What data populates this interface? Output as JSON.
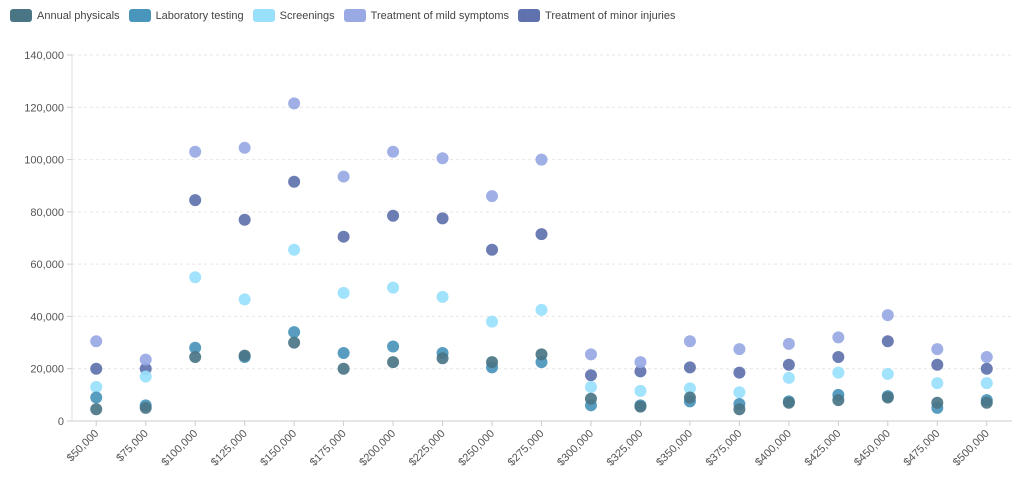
{
  "chart_data": {
    "type": "scatter",
    "title": "",
    "xlabel": "",
    "ylabel": "",
    "ylim": [
      0,
      140000
    ],
    "yticks": [
      0,
      20000,
      40000,
      60000,
      80000,
      100000,
      120000,
      140000
    ],
    "ytick_labels": [
      "0",
      "20,000",
      "40,000",
      "60,000",
      "80,000",
      "100,000",
      "120,000",
      "140,000"
    ],
    "grid": true,
    "legend_position": "top-left",
    "categories": [
      "$50,000",
      "$75,000",
      "$100,000",
      "$125,000",
      "$150,000",
      "$175,000",
      "$200,000",
      "$225,000",
      "$250,000",
      "$275,000",
      "$300,000",
      "$325,000",
      "$350,000",
      "$375,000",
      "$400,000",
      "$425,000",
      "$450,000",
      "$475,000",
      "$500,000"
    ],
    "series": [
      {
        "name": "Annual physicals",
        "color": "#4a7585",
        "values": [
          4500,
          5000,
          24500,
          25000,
          30000,
          20000,
          22500,
          24000,
          22500,
          25500,
          8500,
          5500,
          9000,
          4500,
          7000,
          8000,
          9000,
          7000,
          7000
        ]
      },
      {
        "name": "Laboratory testing",
        "color": "#4a95bb",
        "values": [
          9000,
          6000,
          28000,
          24500,
          34000,
          26000,
          28500,
          26000,
          20500,
          22500,
          6000,
          6000,
          7500,
          6500,
          7500,
          10000,
          9500,
          5000,
          8000
        ]
      },
      {
        "name": "Screenings",
        "color": "#99e0fc",
        "values": [
          13000,
          17000,
          55000,
          46500,
          65500,
          49000,
          51000,
          47500,
          38000,
          42500,
          13000,
          11500,
          12500,
          11000,
          16500,
          18500,
          18000,
          14500,
          14500
        ]
      },
      {
        "name": "Treatment of mild symptoms",
        "color": "#98a9e4",
        "values": [
          30500,
          23500,
          103000,
          104500,
          121500,
          93500,
          103000,
          100500,
          86000,
          100000,
          25500,
          22500,
          30500,
          27500,
          29500,
          32000,
          40500,
          27500,
          24500
        ]
      },
      {
        "name": "Treatment of minor injuries",
        "color": "#5f72ad",
        "values": [
          20000,
          20000,
          84500,
          77000,
          91500,
          70500,
          78500,
          77500,
          65500,
          71500,
          17500,
          19000,
          20500,
          18500,
          21500,
          24500,
          30500,
          21500,
          20000
        ]
      }
    ]
  }
}
